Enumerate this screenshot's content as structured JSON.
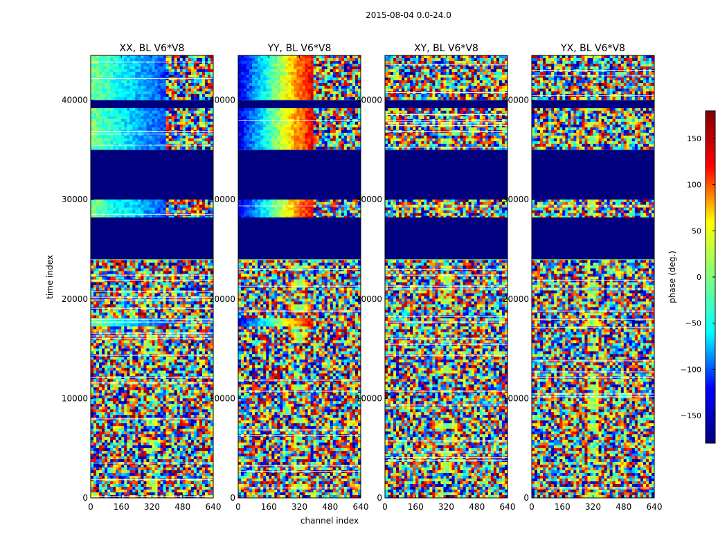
{
  "figure": {
    "suptitle": "2015-08-04 0.0-24.0",
    "xlabel": "channel index",
    "ylabel": "time index"
  },
  "colorbar": {
    "label": "phase (deg.)",
    "range": [
      -180,
      180
    ],
    "ticks": [
      -150,
      -100,
      -50,
      0,
      50,
      100,
      150
    ],
    "tick_labels": [
      "−150",
      "−100",
      "−50",
      "0",
      "50",
      "100",
      "150"
    ],
    "colormap": "jet",
    "colors": [
      "#00007f",
      "#0000ff",
      "#00ffff",
      "#7fff7f",
      "#ffff00",
      "#ff0000",
      "#7f0000"
    ]
  },
  "chart_data": [
    {
      "type": "heatmap",
      "title": "XX, BL V6*V8",
      "xlim": [
        0,
        640
      ],
      "ylim": [
        0,
        44500
      ],
      "xticks": [
        0,
        160,
        320,
        480,
        640
      ],
      "yticks": [
        0,
        10000,
        20000,
        30000,
        40000
      ],
      "blank_time_ranges": [
        [
          24000,
          28200
        ],
        [
          30000,
          35000
        ],
        [
          39200,
          40000
        ]
      ],
      "coherent_time_ranges": [
        [
          35000,
          39200
        ],
        [
          40000,
          44500
        ],
        [
          28200,
          30000
        ],
        [
          17300,
          18000
        ]
      ],
      "coherent_channel_range": [
        0,
        390
      ],
      "coherent_phase_trend": "~0 deg at channel 0 falling to ~-110 deg near channel 390"
    },
    {
      "type": "heatmap",
      "title": "YY, BL V6*V8",
      "xlim": [
        0,
        640
      ],
      "ylim": [
        0,
        44500
      ],
      "xticks": [
        0,
        160,
        320,
        480,
        640
      ],
      "yticks": [
        0,
        10000,
        20000,
        30000,
        40000
      ],
      "blank_time_ranges": [
        [
          24000,
          28200
        ],
        [
          30000,
          35000
        ],
        [
          39200,
          40000
        ]
      ],
      "coherent_time_ranges": [
        [
          35000,
          39200
        ],
        [
          40000,
          44500
        ],
        [
          28200,
          30000
        ],
        [
          17300,
          18000
        ]
      ],
      "coherent_channel_range": [
        0,
        400
      ],
      "coherent_phase_trend": "~-150 deg at channel 0 rising to ~+150 deg near channel 400"
    },
    {
      "type": "heatmap",
      "title": "XY, BL V6*V8",
      "xlim": [
        0,
        640
      ],
      "ylim": [
        0,
        44500
      ],
      "xticks": [
        0,
        160,
        320,
        480,
        640
      ],
      "yticks": [
        0,
        10000,
        20000,
        30000,
        40000
      ],
      "blank_time_ranges": [
        [
          24000,
          28200
        ],
        [
          30000,
          35000
        ],
        [
          39200,
          40000
        ]
      ],
      "coherent_time_ranges": [],
      "coherent_phase_trend": "noise"
    },
    {
      "type": "heatmap",
      "title": "YX, BL V6*V8",
      "xlim": [
        0,
        640
      ],
      "ylim": [
        0,
        44500
      ],
      "xticks": [
        0,
        160,
        320,
        480,
        640
      ],
      "yticks": [
        0,
        10000,
        20000,
        30000,
        40000
      ],
      "blank_time_ranges": [
        [
          24000,
          28200
        ],
        [
          30000,
          35000
        ],
        [
          39200,
          40000
        ]
      ],
      "coherent_time_ranges": [],
      "coherent_phase_trend": "noise"
    }
  ]
}
